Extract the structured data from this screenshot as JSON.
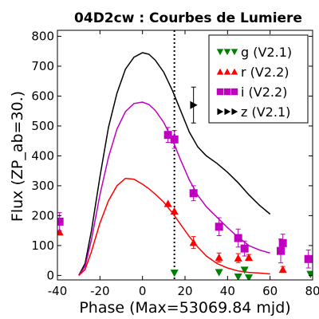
{
  "chart_data": {
    "type": "scatter",
    "title": "04D2cw : Courbes de Lumiere",
    "xlabel": "Phase (Max=53069.84 mjd)",
    "ylabel": "Flux (ZP_ab=30.)",
    "xlim": [
      -40,
      80
    ],
    "ylim": [
      -15,
      820
    ],
    "xticks": [
      -40,
      -20,
      0,
      20,
      40,
      60,
      80
    ],
    "yticks": [
      0,
      100,
      200,
      300,
      400,
      500,
      600,
      700,
      800
    ],
    "xtick_labels": [
      "-40",
      "-20",
      "0",
      "20",
      "40",
      "60",
      "80"
    ],
    "ytick_labels": [
      "0",
      "100",
      "200",
      "300",
      "400",
      "500",
      "600",
      "700",
      "800"
    ],
    "grid": false,
    "legend_position": "top-right",
    "max_marker_x": 15,
    "series": [
      {
        "name": "g (V2.1)",
        "legend_label": "g (V2.1)",
        "color": "#008000",
        "marker": "triangle-down",
        "points": [
          {
            "x": 15,
            "y": 8,
            "err": 0
          },
          {
            "x": 36,
            "y": 10,
            "err": 0
          },
          {
            "x": 45,
            "y": -5,
            "err": 0
          },
          {
            "x": 48,
            "y": 18,
            "err": 0
          },
          {
            "x": 50,
            "y": -8,
            "err": 0
          },
          {
            "x": 79,
            "y": 4,
            "err": 0
          }
        ]
      },
      {
        "name": "r (V2.2)",
        "legend_label": "r (V2.2)",
        "color": "#ff0000",
        "marker": "triangle-up",
        "points": [
          {
            "x": -39,
            "y": 145,
            "err": 0
          },
          {
            "x": 12,
            "y": 240,
            "err": 0
          },
          {
            "x": 15,
            "y": 215,
            "err": 0
          },
          {
            "x": 24,
            "y": 110,
            "err": 20
          },
          {
            "x": 36,
            "y": 60,
            "err": 15
          },
          {
            "x": 45,
            "y": 58,
            "err": 15
          },
          {
            "x": 50,
            "y": 60,
            "err": 10
          },
          {
            "x": 66,
            "y": 20,
            "err": 10
          }
        ]
      },
      {
        "name": "i (V2.2)",
        "legend_label": "i (V2.2)",
        "color": "#bf00bf",
        "marker": "square",
        "points": [
          {
            "x": -39,
            "y": 180,
            "err": 30
          },
          {
            "x": 12,
            "y": 470,
            "err": 25
          },
          {
            "x": 15,
            "y": 455,
            "err": 30
          },
          {
            "x": 24,
            "y": 275,
            "err": 25
          },
          {
            "x": 36,
            "y": 163,
            "err": 30
          },
          {
            "x": 45,
            "y": 125,
            "err": 30
          },
          {
            "x": 48,
            "y": 90,
            "err": 25
          },
          {
            "x": 65,
            "y": 82,
            "err": 40
          },
          {
            "x": 66,
            "y": 108,
            "err": 30
          },
          {
            "x": 78,
            "y": 55,
            "err": 30
          }
        ]
      },
      {
        "name": "z (V2.1)",
        "legend_label": "z (V2.1)",
        "color": "#000000",
        "marker": "triangle-right",
        "points": [
          {
            "x": 24,
            "y": 570,
            "err": 60
          }
        ]
      }
    ],
    "curves": [
      {
        "name": "z model",
        "color": "#000000",
        "x": [
          -30,
          -27,
          -24,
          -20,
          -16,
          -12,
          -8,
          -4,
          0,
          3,
          6,
          10,
          14,
          18,
          22,
          26,
          30,
          35,
          40,
          45,
          50,
          55,
          60
        ],
        "y": [
          0,
          40,
          150,
          330,
          495,
          610,
          690,
          730,
          745,
          740,
          720,
          680,
          620,
          550,
          480,
          430,
          400,
          375,
          345,
          310,
          270,
          235,
          205
        ]
      },
      {
        "name": "i model",
        "color": "#bf00bf",
        "x": [
          -30,
          -27,
          -24,
          -20,
          -16,
          -12,
          -8,
          -4,
          0,
          3,
          6,
          10,
          14,
          18,
          22,
          26,
          30,
          35,
          40,
          45,
          50,
          55,
          60
        ],
        "y": [
          0,
          30,
          120,
          270,
          395,
          490,
          548,
          575,
          580,
          572,
          552,
          512,
          455,
          385,
          320,
          268,
          230,
          195,
          160,
          128,
          100,
          85,
          75
        ]
      },
      {
        "name": "r model",
        "color": "#ff0000",
        "x": [
          -30,
          -27,
          -24,
          -20,
          -16,
          -12,
          -8,
          -4,
          0,
          3,
          6,
          10,
          14,
          18,
          22,
          26,
          30,
          35,
          40,
          45,
          50,
          55,
          60
        ],
        "y": [
          0,
          20,
          80,
          175,
          250,
          300,
          325,
          322,
          305,
          290,
          272,
          245,
          210,
          170,
          130,
          95,
          65,
          40,
          25,
          15,
          10,
          8,
          5
        ]
      }
    ]
  }
}
